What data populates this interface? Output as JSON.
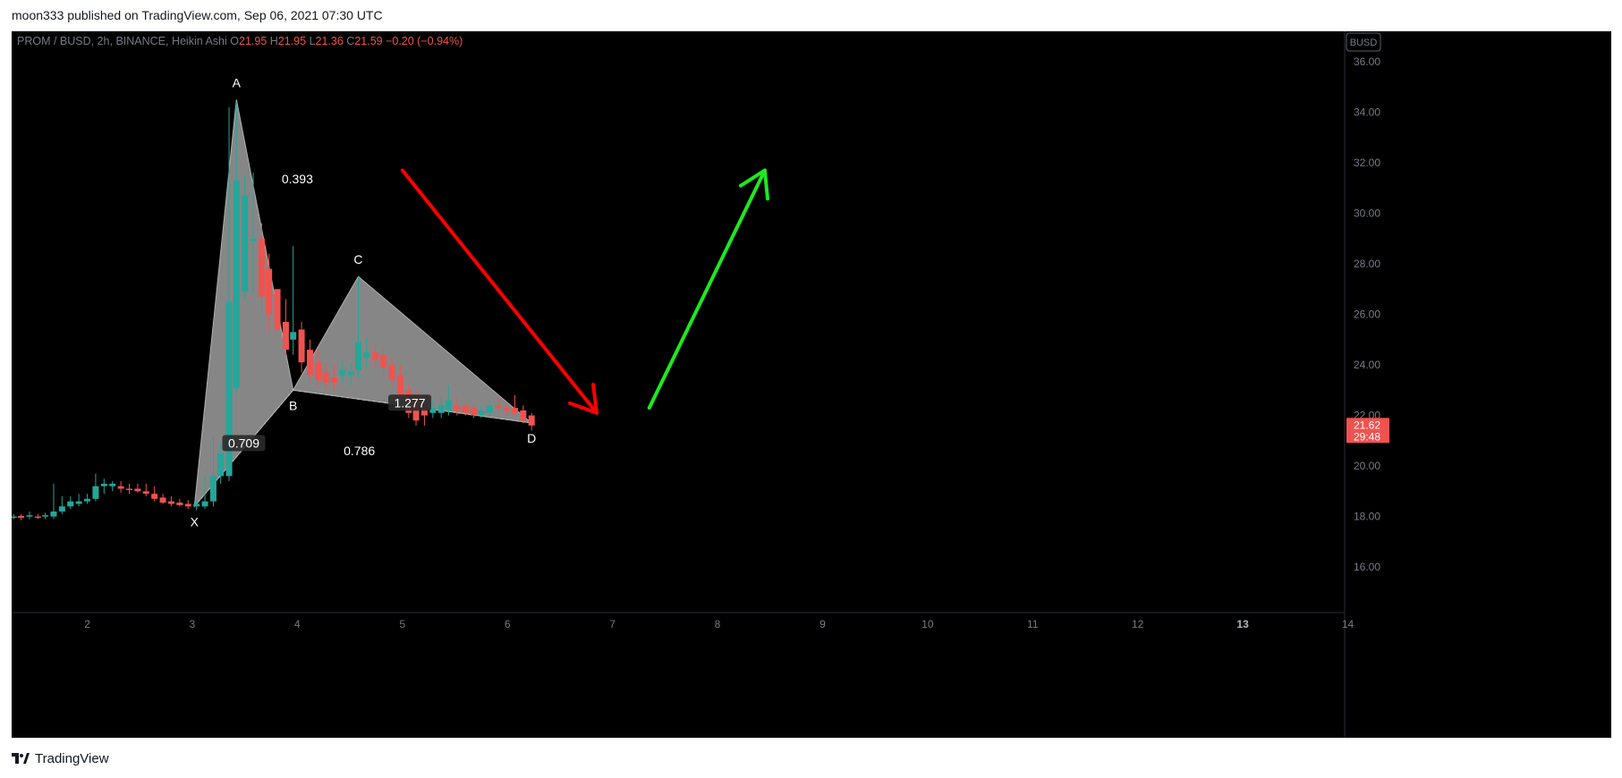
{
  "caption": {
    "author": "moon333",
    "published_text": "published on TradingView.com, Sep 06, 2021 07:30 UTC"
  },
  "brand": {
    "name": "TradingView",
    "logo_icon": "tradingview-logo-icon"
  },
  "colors": {
    "up": "#26a69a",
    "down": "#ef5350",
    "red_arrow": "#ff0000",
    "green_arrow": "#1ee81e",
    "pattern_fill": "#9e9e9e"
  },
  "chart_data": {
    "type": "candlestick",
    "header": {
      "symbol": "PROM / BUSD, 2h, BINANCE, Heikin Ashi",
      "o_label": "O",
      "o_value": "21.95",
      "h_label": "H",
      "h_value": "21.95",
      "l_label": "L",
      "l_value": "21.36",
      "c_label": "C",
      "c_value": "21.59",
      "change": "−0.20 (−0.94%)"
    },
    "currency_label": "BUSD",
    "y_axis": {
      "ticks": [
        "16.00",
        "18.00",
        "20.00",
        "22.00",
        "24.00",
        "26.00",
        "28.00",
        "30.00",
        "32.00",
        "34.00",
        "36.00"
      ],
      "range": [
        14.2,
        37.2
      ]
    },
    "x_axis": {
      "ticks": [
        "2",
        "3",
        "4",
        "5",
        "6",
        "7",
        "8",
        "9",
        "10",
        "11",
        "12",
        "13",
        "14"
      ],
      "range": [
        1.28,
        13.97
      ],
      "bold_tick": "13"
    },
    "last_price": {
      "value": 21.62,
      "label": "21.62",
      "countdown": "29:48"
    },
    "candles": [
      {
        "x": 1.3,
        "o": 18.0,
        "h": 18.1,
        "l": 17.9,
        "c": 18.0
      },
      {
        "x": 1.37,
        "o": 18.02,
        "h": 18.1,
        "l": 17.85,
        "c": 17.95
      },
      {
        "x": 1.45,
        "o": 18.0,
        "h": 18.2,
        "l": 17.9,
        "c": 18.05
      },
      {
        "x": 1.53,
        "o": 18.0,
        "h": 18.1,
        "l": 17.9,
        "c": 17.95
      },
      {
        "x": 1.6,
        "o": 18.0,
        "h": 18.15,
        "l": 17.9,
        "c": 18.05
      },
      {
        "x": 1.68,
        "o": 18.0,
        "h": 19.3,
        "l": 17.9,
        "c": 18.2
      },
      {
        "x": 1.76,
        "o": 18.2,
        "h": 18.8,
        "l": 18.1,
        "c": 18.4
      },
      {
        "x": 1.84,
        "o": 18.4,
        "h": 18.8,
        "l": 18.3,
        "c": 18.6
      },
      {
        "x": 1.92,
        "o": 18.5,
        "h": 18.9,
        "l": 18.4,
        "c": 18.6
      },
      {
        "x": 2.0,
        "o": 18.6,
        "h": 18.9,
        "l": 18.5,
        "c": 18.7
      },
      {
        "x": 2.08,
        "o": 18.7,
        "h": 19.7,
        "l": 18.6,
        "c": 19.2
      },
      {
        "x": 2.16,
        "o": 19.2,
        "h": 19.5,
        "l": 18.9,
        "c": 19.3
      },
      {
        "x": 2.24,
        "o": 19.2,
        "h": 19.4,
        "l": 19.0,
        "c": 19.3
      },
      {
        "x": 2.32,
        "o": 19.2,
        "h": 19.4,
        "l": 18.95,
        "c": 19.1
      },
      {
        "x": 2.4,
        "o": 19.1,
        "h": 19.3,
        "l": 18.9,
        "c": 19.05
      },
      {
        "x": 2.48,
        "o": 19.1,
        "h": 19.3,
        "l": 18.95,
        "c": 19.0
      },
      {
        "x": 2.56,
        "o": 19.0,
        "h": 19.3,
        "l": 18.8,
        "c": 18.9
      },
      {
        "x": 2.64,
        "o": 18.9,
        "h": 19.2,
        "l": 18.6,
        "c": 18.7
      },
      {
        "x": 2.72,
        "o": 18.75,
        "h": 18.9,
        "l": 18.5,
        "c": 18.55
      },
      {
        "x": 2.8,
        "o": 18.6,
        "h": 18.8,
        "l": 18.4,
        "c": 18.5
      },
      {
        "x": 2.88,
        "o": 18.55,
        "h": 18.7,
        "l": 18.4,
        "c": 18.45
      },
      {
        "x": 2.96,
        "o": 18.5,
        "h": 18.65,
        "l": 18.3,
        "c": 18.4
      },
      {
        "x": 3.04,
        "o": 18.4,
        "h": 18.7,
        "l": 18.25,
        "c": 18.5
      },
      {
        "x": 3.12,
        "o": 18.4,
        "h": 19.6,
        "l": 18.3,
        "c": 18.6
      },
      {
        "x": 3.2,
        "o": 18.6,
        "h": 21.2,
        "l": 18.4,
        "c": 19.6
      },
      {
        "x": 3.27,
        "o": 19.6,
        "h": 20.9,
        "l": 19.3,
        "c": 20.5
      },
      {
        "x": 3.35,
        "o": 19.6,
        "h": 34.2,
        "l": 19.4,
        "c": 26.5
      },
      {
        "x": 3.42,
        "o": 23.1,
        "h": 34.4,
        "l": 22.9,
        "c": 31.3
      },
      {
        "x": 3.5,
        "o": 26.9,
        "h": 31.5,
        "l": 26.6,
        "c": 30.7
      },
      {
        "x": 3.58,
        "o": 28.9,
        "h": 31.6,
        "l": 26.8,
        "c": 29.0
      },
      {
        "x": 3.66,
        "o": 29.0,
        "h": 29.6,
        "l": 26.2,
        "c": 26.7
      },
      {
        "x": 3.73,
        "o": 27.8,
        "h": 28.4,
        "l": 25.3,
        "c": 26.0
      },
      {
        "x": 3.81,
        "o": 27.0,
        "h": 27.0,
        "l": 25.3,
        "c": 25.4
      },
      {
        "x": 3.89,
        "o": 25.7,
        "h": 26.6,
        "l": 24.4,
        "c": 24.6
      },
      {
        "x": 3.96,
        "o": 25.0,
        "h": 28.7,
        "l": 24.4,
        "c": 25.3
      },
      {
        "x": 4.04,
        "o": 25.4,
        "h": 25.7,
        "l": 23.7,
        "c": 24.1
      },
      {
        "x": 4.12,
        "o": 24.6,
        "h": 25.0,
        "l": 23.4,
        "c": 23.6
      },
      {
        "x": 4.2,
        "o": 24.1,
        "h": 24.6,
        "l": 23.2,
        "c": 23.4
      },
      {
        "x": 4.27,
        "o": 23.7,
        "h": 24.1,
        "l": 23.0,
        "c": 23.3
      },
      {
        "x": 4.35,
        "o": 23.5,
        "h": 24.0,
        "l": 23.0,
        "c": 23.3
      },
      {
        "x": 4.43,
        "o": 23.6,
        "h": 24.2,
        "l": 23.3,
        "c": 23.8
      },
      {
        "x": 4.51,
        "o": 23.6,
        "h": 24.1,
        "l": 23.2,
        "c": 23.75
      },
      {
        "x": 4.58,
        "o": 23.8,
        "h": 27.5,
        "l": 23.5,
        "c": 24.9
      },
      {
        "x": 4.66,
        "o": 24.3,
        "h": 25.1,
        "l": 23.9,
        "c": 24.5
      },
      {
        "x": 4.74,
        "o": 24.5,
        "h": 24.8,
        "l": 23.9,
        "c": 24.2
      },
      {
        "x": 4.82,
        "o": 24.4,
        "h": 24.6,
        "l": 23.6,
        "c": 23.9
      },
      {
        "x": 4.9,
        "o": 24.0,
        "h": 24.3,
        "l": 23.2,
        "c": 23.4
      },
      {
        "x": 4.98,
        "o": 23.6,
        "h": 24.0,
        "l": 22.6,
        "c": 22.8
      },
      {
        "x": 5.06,
        "o": 23.0,
        "h": 23.3,
        "l": 21.9,
        "c": 22.1
      },
      {
        "x": 5.13,
        "o": 22.8,
        "h": 23.0,
        "l": 21.6,
        "c": 21.8
      },
      {
        "x": 5.21,
        "o": 22.5,
        "h": 22.8,
        "l": 21.6,
        "c": 22.0
      },
      {
        "x": 5.29,
        "o": 22.1,
        "h": 22.6,
        "l": 21.9,
        "c": 22.3
      },
      {
        "x": 5.37,
        "o": 22.1,
        "h": 22.8,
        "l": 21.9,
        "c": 22.4
      },
      {
        "x": 5.44,
        "o": 22.2,
        "h": 23.2,
        "l": 22.0,
        "c": 22.6
      },
      {
        "x": 5.52,
        "o": 22.4,
        "h": 22.7,
        "l": 22.0,
        "c": 22.2
      },
      {
        "x": 5.6,
        "o": 22.4,
        "h": 22.6,
        "l": 22.0,
        "c": 22.1
      },
      {
        "x": 5.68,
        "o": 22.3,
        "h": 22.4,
        "l": 21.9,
        "c": 22.0
      },
      {
        "x": 5.75,
        "o": 22.0,
        "h": 22.4,
        "l": 21.9,
        "c": 22.2
      },
      {
        "x": 5.83,
        "o": 22.1,
        "h": 22.6,
        "l": 21.95,
        "c": 22.4
      },
      {
        "x": 5.91,
        "o": 22.4,
        "h": 22.8,
        "l": 22.2,
        "c": 22.3
      },
      {
        "x": 5.99,
        "o": 22.3,
        "h": 22.5,
        "l": 22.0,
        "c": 22.2
      },
      {
        "x": 6.07,
        "o": 22.3,
        "h": 22.8,
        "l": 22.0,
        "c": 22.1
      },
      {
        "x": 6.15,
        "o": 22.2,
        "h": 22.4,
        "l": 21.7,
        "c": 21.8
      },
      {
        "x": 6.23,
        "o": 22.0,
        "h": 22.1,
        "l": 21.4,
        "c": 21.6
      }
    ],
    "pattern": {
      "points": [
        {
          "label": "X",
          "x": 3.02,
          "y": 18.4
        },
        {
          "label": "A",
          "x": 3.42,
          "y": 34.5
        },
        {
          "label": "B",
          "x": 3.96,
          "y": 23.0
        },
        {
          "label": "C",
          "x": 4.58,
          "y": 27.5
        },
        {
          "label": "D",
          "x": 6.23,
          "y": 21.7
        }
      ],
      "ratios": [
        {
          "label": "0.393",
          "x": 4.0,
          "y": 31.25,
          "boxed": false
        },
        {
          "label": "0.709",
          "x": 3.49,
          "y": 20.8,
          "boxed": true
        },
        {
          "label": "0.786",
          "x": 4.59,
          "y": 20.5,
          "boxed": false
        },
        {
          "label": "1.277",
          "x": 5.07,
          "y": 22.4,
          "boxed": true
        }
      ]
    },
    "arrows": [
      {
        "name": "red-arrow",
        "color": "red",
        "from": {
          "x": 5.0,
          "y": 31.7
        },
        "to": {
          "x": 6.85,
          "y": 22.1
        }
      },
      {
        "name": "green-arrow",
        "color": "green",
        "from": {
          "x": 7.35,
          "y": 22.3
        },
        "to": {
          "x": 8.45,
          "y": 31.7
        }
      }
    ]
  }
}
